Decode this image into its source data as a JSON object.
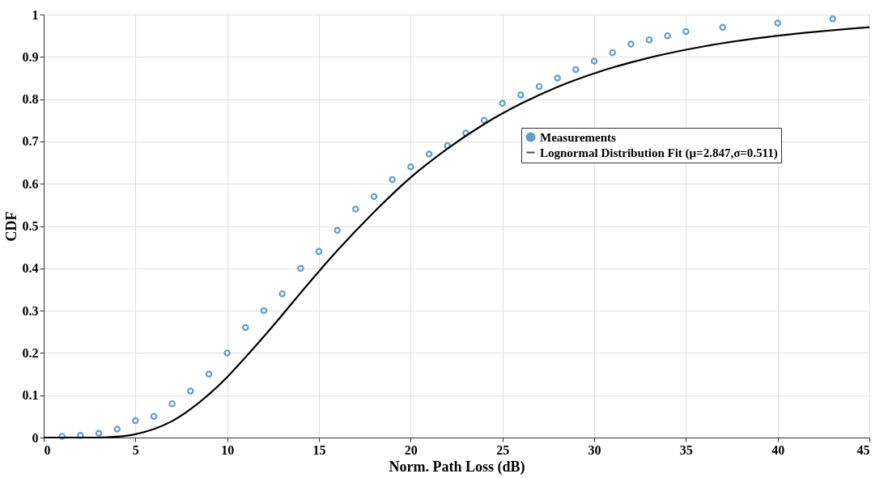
{
  "chart_data": {
    "type": "scatter",
    "xlabel": "Norm. Path Loss (dB)",
    "ylabel": "CDF",
    "xlim": [
      0,
      45
    ],
    "xticks": [
      0,
      5,
      10,
      15,
      20,
      25,
      30,
      35,
      40,
      45
    ],
    "ylim": [
      0,
      1
    ],
    "yticks": [
      0,
      0.1,
      0.2,
      0.3,
      0.4,
      0.5,
      0.6,
      0.7,
      0.8,
      0.9,
      1
    ],
    "grid": true,
    "legend": "right",
    "marker": "circle",
    "series": [
      {
        "name": "Measurements",
        "color": "#1f77b4",
        "x": [
          1,
          2,
          3,
          4,
          5,
          6,
          7,
          8,
          9,
          10,
          11,
          12,
          13,
          14,
          15,
          16,
          17,
          18,
          19,
          20,
          21,
          22,
          23,
          24,
          25,
          26,
          27,
          28,
          29,
          30,
          31,
          32,
          33,
          34,
          35,
          37,
          40,
          43
        ],
        "values": [
          0.003,
          0.005,
          0.01,
          0.02,
          0.04,
          0.05,
          0.08,
          0.11,
          0.15,
          0.2,
          0.26,
          0.3,
          0.34,
          0.4,
          0.44,
          0.49,
          0.54,
          0.57,
          0.61,
          0.64,
          0.67,
          0.69,
          0.72,
          0.75,
          0.79,
          0.81,
          0.83,
          0.85,
          0.87,
          0.89,
          0.91,
          0.93,
          0.94,
          0.95,
          0.96,
          0.97,
          0.98,
          0.99
        ]
      },
      {
        "name": "Lognormal Distribution Fit (μ=2.847,σ=0.511)",
        "type": "line",
        "color": "#000000",
        "line_style": "solid",
        "marker": "none",
        "x": [
          0,
          2,
          3,
          4,
          5,
          6,
          7,
          8,
          9,
          10,
          11,
          12,
          13,
          14,
          15,
          16,
          18,
          20,
          22,
          24,
          26,
          28,
          30,
          33,
          36,
          40,
          45
        ],
        "values": [
          0,
          0,
          0,
          0.002,
          0.008,
          0.02,
          0.039,
          0.067,
          0.102,
          0.143,
          0.19,
          0.239,
          0.29,
          0.342,
          0.393,
          0.442,
          0.533,
          0.615,
          0.683,
          0.741,
          0.789,
          0.829,
          0.861,
          0.898,
          0.925,
          0.95,
          0.97
        ]
      }
    ]
  }
}
